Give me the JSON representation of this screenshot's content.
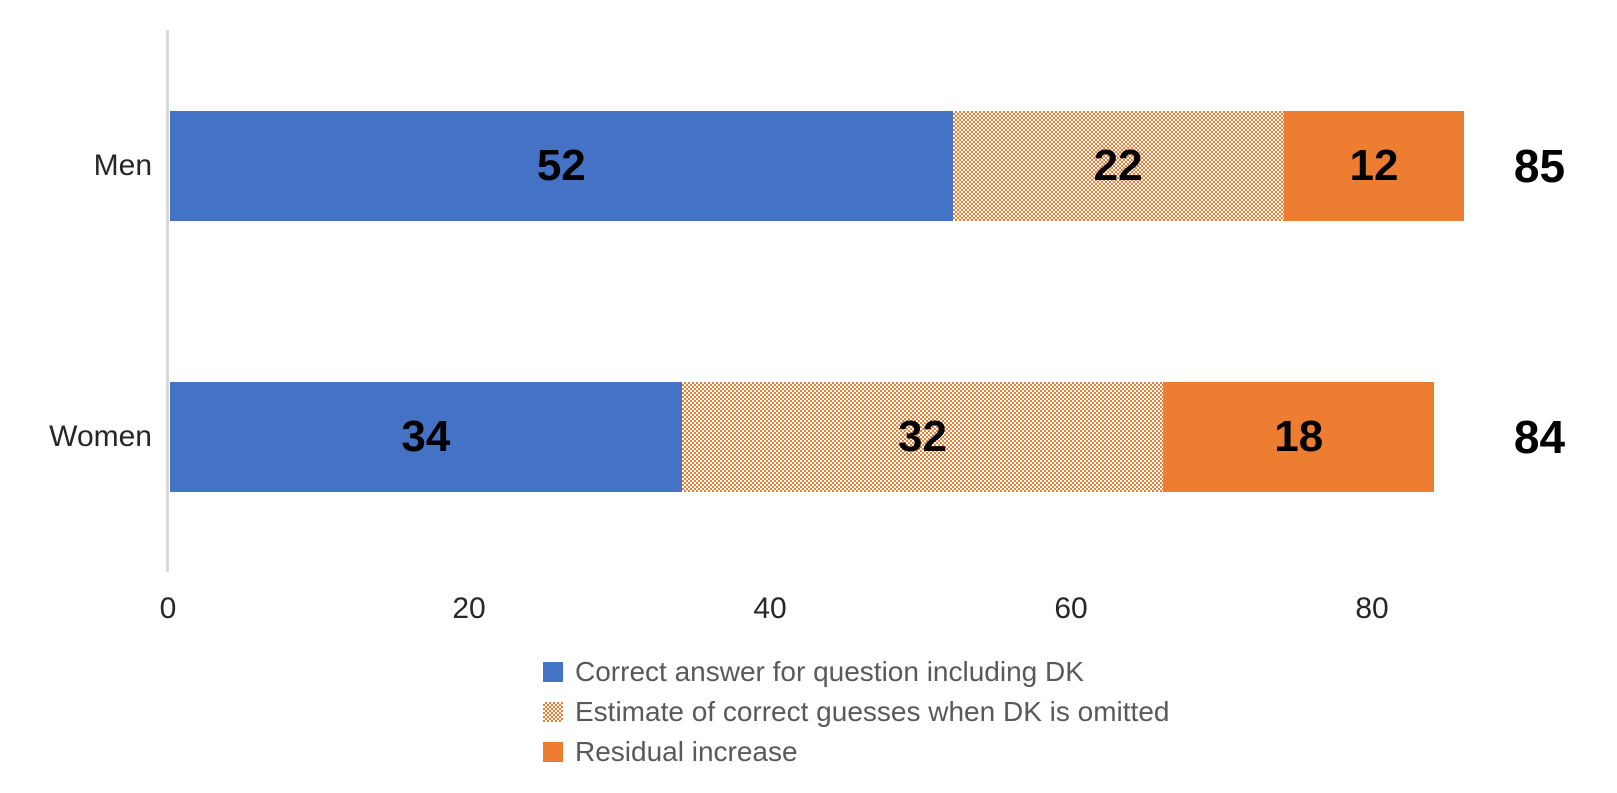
{
  "chart_data": {
    "type": "bar",
    "variant": "horizontal-stacked",
    "title": "",
    "categories": [
      "Men",
      "Women"
    ],
    "series": [
      {
        "name": "Correct answer for question including DK",
        "fill": "solid-blue",
        "color": "#4472C4",
        "values": [
          52,
          34
        ]
      },
      {
        "name": "Estimate of correct guesses when DK is omitted",
        "fill": "dotted-orange",
        "color": "#ED7D31",
        "values": [
          22,
          32
        ]
      },
      {
        "name": "Residual increase",
        "fill": "solid-orange",
        "color": "#ED7D31",
        "values": [
          12,
          18
        ]
      }
    ],
    "bar_totals": [
      "85",
      "84"
    ],
    "x_ticks": [
      "0",
      "20",
      "40",
      "60",
      "80"
    ],
    "xlim": [
      0,
      86
    ],
    "grid": false,
    "legend_position": "bottom",
    "colors": {
      "axis_line": "#D9D9D9",
      "tick_label": "#262626",
      "category_label": "#262626",
      "value_label": "#000000",
      "legend_text": "#595959",
      "blue": "#4472C4",
      "orange": "#ED7D31"
    }
  }
}
